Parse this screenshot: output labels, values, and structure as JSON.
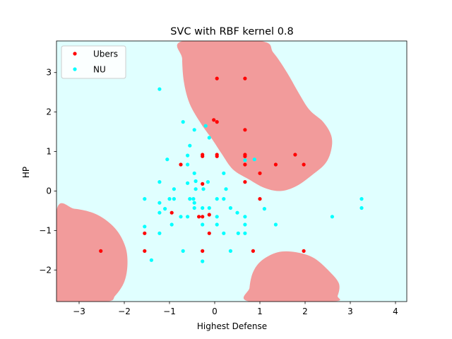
{
  "chart_data": {
    "type": "scatter",
    "title": "SVC with RBF kernel 0.8",
    "xlabel": "Highest Defense",
    "ylabel": "HP",
    "xlim": [
      -3.5,
      4.25
    ],
    "ylim": [
      -2.8,
      3.8
    ],
    "xticks": [
      "−3",
      "−2",
      "−1",
      "0",
      "1",
      "2",
      "3",
      "4"
    ],
    "xtick_values": [
      -3,
      -2,
      -1,
      0,
      1,
      2,
      3,
      4
    ],
    "yticks": [
      "−2",
      "−1",
      "0",
      "1",
      "2",
      "3"
    ],
    "ytick_values": [
      -2,
      -1,
      0,
      1,
      2,
      3
    ],
    "legend_position": "top-left",
    "grid": false,
    "background_color": "#e0ffff",
    "region_color": "#f29b9b",
    "decision_regions": [
      {
        "name": "upper-right",
        "points": [
          [
            -0.7,
            3.8
          ],
          [
            1.0,
            3.8
          ],
          [
            1.3,
            3.5
          ],
          [
            1.6,
            3.0
          ],
          [
            1.85,
            2.5
          ],
          [
            2.1,
            2.05
          ],
          [
            2.4,
            1.75
          ],
          [
            2.58,
            1.4
          ],
          [
            2.58,
            1.05
          ],
          [
            2.45,
            0.7
          ],
          [
            2.15,
            0.4
          ],
          [
            1.8,
            0.12
          ],
          [
            1.45,
            0.0
          ],
          [
            1.1,
            0.08
          ],
          [
            0.75,
            0.3
          ],
          [
            0.4,
            0.55
          ],
          [
            0.15,
            0.95
          ],
          [
            -0.05,
            1.3
          ],
          [
            -0.3,
            1.7
          ],
          [
            -0.55,
            2.2
          ],
          [
            -0.68,
            2.75
          ],
          [
            -0.72,
            3.35
          ]
        ]
      },
      {
        "name": "lower-left",
        "points": [
          [
            -3.5,
            -0.5
          ],
          [
            -3.1,
            -0.45
          ],
          [
            -2.6,
            -0.6
          ],
          [
            -2.2,
            -0.95
          ],
          [
            -1.98,
            -1.4
          ],
          [
            -1.93,
            -1.85
          ],
          [
            -2.0,
            -2.3
          ],
          [
            -2.2,
            -2.65
          ],
          [
            -2.4,
            -2.8
          ],
          [
            -3.5,
            -2.8
          ]
        ]
      },
      {
        "name": "bottom-center",
        "points": [
          [
            0.78,
            -2.8
          ],
          [
            0.77,
            -2.45
          ],
          [
            0.85,
            -2.05
          ],
          [
            1.05,
            -1.75
          ],
          [
            1.4,
            -1.55
          ],
          [
            1.8,
            -1.55
          ],
          [
            2.2,
            -1.7
          ],
          [
            2.55,
            -2.05
          ],
          [
            2.75,
            -2.35
          ],
          [
            2.72,
            -2.65
          ],
          [
            2.6,
            -2.8
          ]
        ]
      }
    ],
    "series": [
      {
        "name": "Ubers",
        "color": "#ff0000",
        "points": [
          [
            0.05,
            2.85
          ],
          [
            0.67,
            2.85
          ],
          [
            -0.02,
            1.8
          ],
          [
            0.05,
            1.75
          ],
          [
            0.67,
            1.55
          ],
          [
            0.67,
            0.92
          ],
          [
            0.05,
            0.92
          ],
          [
            0.05,
            0.88
          ],
          [
            -0.27,
            0.92
          ],
          [
            -0.27,
            0.88
          ],
          [
            0.67,
            0.88
          ],
          [
            1.78,
            0.92
          ],
          [
            -0.75,
            0.67
          ],
          [
            0.67,
            0.67
          ],
          [
            1.35,
            0.67
          ],
          [
            1.97,
            0.67
          ],
          [
            1.0,
            0.45
          ],
          [
            0.67,
            0.23
          ],
          [
            -0.27,
            0.18
          ],
          [
            1.0,
            -0.2
          ],
          [
            -0.95,
            -0.55
          ],
          [
            -0.35,
            -0.65
          ],
          [
            -0.27,
            -0.65
          ],
          [
            -0.12,
            -0.6
          ],
          [
            -1.55,
            -1.07
          ],
          [
            -0.12,
            -1.07
          ],
          [
            -2.52,
            -1.52
          ],
          [
            -1.55,
            -1.52
          ],
          [
            -0.27,
            -1.52
          ],
          [
            0.85,
            -1.52
          ],
          [
            1.97,
            -1.52
          ]
        ]
      },
      {
        "name": "NU",
        "color": "#00ffff",
        "points": [
          [
            -1.22,
            2.58
          ],
          [
            -0.7,
            1.75
          ],
          [
            -0.2,
            1.65
          ],
          [
            -0.45,
            1.55
          ],
          [
            -0.12,
            1.35
          ],
          [
            -0.55,
            1.15
          ],
          [
            -0.6,
            0.9
          ],
          [
            -1.05,
            0.8
          ],
          [
            0.88,
            0.8
          ],
          [
            0.67,
            0.78
          ],
          [
            -0.6,
            0.67
          ],
          [
            0.2,
            0.45
          ],
          [
            -0.45,
            0.45
          ],
          [
            -0.6,
            0.2
          ],
          [
            -0.42,
            0.25
          ],
          [
            -1.22,
            0.23
          ],
          [
            -0.15,
            0.23
          ],
          [
            -0.42,
            0.05
          ],
          [
            -0.9,
            0.05
          ],
          [
            0.25,
            0.05
          ],
          [
            -0.25,
            0.05
          ],
          [
            -1.0,
            -0.2
          ],
          [
            -0.55,
            -0.2
          ],
          [
            -0.47,
            -0.2
          ],
          [
            -0.9,
            -0.2
          ],
          [
            0.05,
            -0.2
          ],
          [
            0.2,
            -0.2
          ],
          [
            -1.55,
            -0.2
          ],
          [
            -1.22,
            -0.3
          ],
          [
            -0.45,
            -0.3
          ],
          [
            -1.1,
            -0.45
          ],
          [
            -0.45,
            -0.43
          ],
          [
            -0.27,
            -0.43
          ],
          [
            -0.12,
            -0.43
          ],
          [
            0.35,
            -0.43
          ],
          [
            0.5,
            -0.55
          ],
          [
            1.1,
            -0.45
          ],
          [
            -1.22,
            -0.55
          ],
          [
            -0.75,
            -0.65
          ],
          [
            0.67,
            -0.65
          ],
          [
            -0.6,
            -0.65
          ],
          [
            0.05,
            -0.65
          ],
          [
            -1.55,
            -0.9
          ],
          [
            -0.95,
            -0.85
          ],
          [
            -0.27,
            -0.85
          ],
          [
            0.05,
            -0.85
          ],
          [
            0.67,
            -0.85
          ],
          [
            1.35,
            -0.85
          ],
          [
            -1.22,
            -1.07
          ],
          [
            0.2,
            -1.07
          ],
          [
            0.52,
            -1.07
          ],
          [
            0.67,
            -1.07
          ],
          [
            -0.7,
            -1.52
          ],
          [
            0.35,
            -1.52
          ],
          [
            -1.4,
            -1.75
          ],
          [
            -0.27,
            -1.78
          ],
          [
            2.6,
            -0.65
          ],
          [
            3.25,
            -0.2
          ],
          [
            3.25,
            -0.43
          ]
        ]
      }
    ]
  }
}
